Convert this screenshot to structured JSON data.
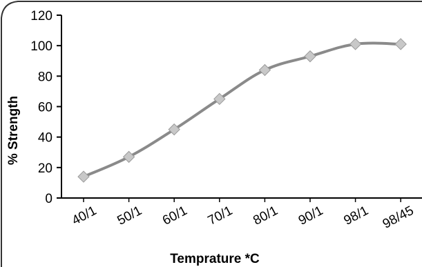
{
  "chart_data": {
    "type": "line",
    "categories": [
      "40/1",
      "50/1",
      "60/1",
      "70/1",
      "80/1",
      "90/1",
      "98/1",
      "98/45"
    ],
    "values": [
      14,
      27,
      45,
      65,
      84,
      93,
      101,
      101
    ],
    "xlabel": "Temprature *C",
    "ylabel": "% Strength",
    "ylim": [
      0,
      120
    ],
    "yticks": [
      0,
      20,
      40,
      60,
      80,
      100,
      120
    ],
    "grid": false,
    "legend": "none",
    "colors": {
      "line": "#8a8a8a",
      "marker": "#c8c8c8",
      "axis": "#000000",
      "frame": "#333333"
    }
  }
}
